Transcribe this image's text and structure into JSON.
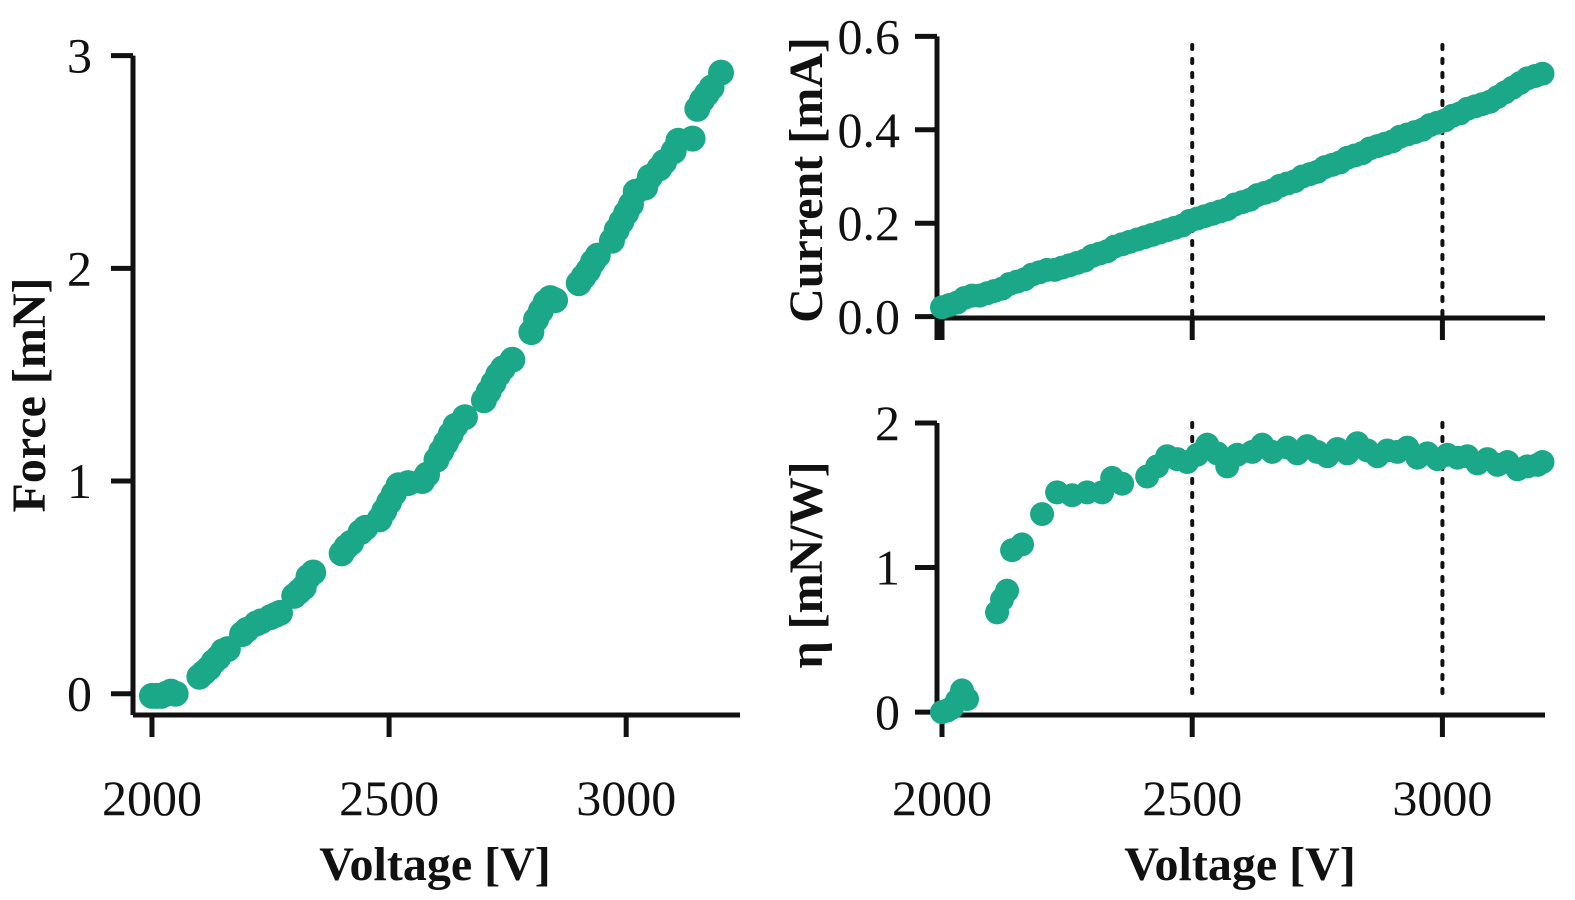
{
  "colors": {
    "marker": "#1aa888",
    "axis": "#111111"
  },
  "chart_data": [
    {
      "id": "force",
      "type": "scatter",
      "title": "",
      "xlabel": "Voltage [V]",
      "ylabel": "Force [mN]",
      "xlim": [
        1960,
        3240
      ],
      "ylim": [
        -0.1,
        3.05
      ],
      "xticks": [
        2000,
        2500,
        3000
      ],
      "xtick_labels": [
        "2000",
        "2500",
        "3000"
      ],
      "yticks": [
        0,
        1,
        2,
        3
      ],
      "ytick_labels": [
        "0",
        "1",
        "2",
        "3"
      ],
      "x": [
        2000,
        2010,
        2020,
        2030,
        2040,
        2050,
        2100,
        2110,
        2120,
        2130,
        2140,
        2150,
        2160,
        2190,
        2200,
        2220,
        2230,
        2250,
        2260,
        2270,
        2300,
        2310,
        2320,
        2330,
        2340,
        2400,
        2410,
        2420,
        2440,
        2450,
        2480,
        2490,
        2500,
        2510,
        2520,
        2540,
        2570,
        2580,
        2600,
        2610,
        2620,
        2630,
        2640,
        2660,
        2700,
        2710,
        2720,
        2730,
        2740,
        2760,
        2800,
        2810,
        2820,
        2830,
        2840,
        2850,
        2900,
        2910,
        2920,
        2930,
        2940,
        2970,
        2980,
        2990,
        3000,
        3010,
        3020,
        3040,
        3050,
        3070,
        3080,
        3100,
        3110,
        3140,
        3150,
        3160,
        3170,
        3180,
        3200
      ],
      "y": [
        -0.01,
        -0.01,
        -0.01,
        0.0,
        0.01,
        0.0,
        0.08,
        0.1,
        0.12,
        0.15,
        0.17,
        0.2,
        0.21,
        0.28,
        0.3,
        0.33,
        0.34,
        0.36,
        0.37,
        0.38,
        0.46,
        0.48,
        0.5,
        0.55,
        0.57,
        0.66,
        0.69,
        0.71,
        0.76,
        0.78,
        0.82,
        0.86,
        0.9,
        0.94,
        0.98,
        0.99,
        1.0,
        1.03,
        1.1,
        1.14,
        1.18,
        1.22,
        1.26,
        1.3,
        1.38,
        1.42,
        1.46,
        1.5,
        1.53,
        1.57,
        1.7,
        1.76,
        1.8,
        1.84,
        1.86,
        1.85,
        1.93,
        1.96,
        1.99,
        2.03,
        2.06,
        2.13,
        2.18,
        2.22,
        2.26,
        2.3,
        2.36,
        2.38,
        2.43,
        2.47,
        2.5,
        2.55,
        2.6,
        2.61,
        2.75,
        2.79,
        2.82,
        2.85,
        2.92
      ],
      "grid": false,
      "legend": "none"
    },
    {
      "id": "current",
      "type": "scatter",
      "title": "",
      "xlabel": "",
      "ylabel": "Current [mA]",
      "xlim": [
        1990,
        3205
      ],
      "ylim": [
        -0.05,
        0.62
      ],
      "xticks": [
        2000,
        2500,
        3000
      ],
      "xtick_labels": [
        "",
        "",
        ""
      ],
      "yticks": [
        0.0,
        0.2,
        0.4,
        0.6
      ],
      "ytick_labels": [
        "0.0",
        "0.2",
        "0.4",
        "0.6"
      ],
      "reference_lines_x": [
        2500,
        3000
      ],
      "x": [
        2000,
        2015,
        2030,
        2045,
        2060,
        2075,
        2090,
        2105,
        2120,
        2135,
        2150,
        2165,
        2180,
        2195,
        2210,
        2225,
        2240,
        2255,
        2270,
        2285,
        2300,
        2315,
        2330,
        2345,
        2360,
        2375,
        2390,
        2405,
        2420,
        2435,
        2450,
        2465,
        2480,
        2495,
        2510,
        2525,
        2540,
        2555,
        2570,
        2585,
        2600,
        2615,
        2630,
        2645,
        2660,
        2675,
        2690,
        2705,
        2720,
        2735,
        2750,
        2765,
        2780,
        2795,
        2810,
        2825,
        2840,
        2855,
        2870,
        2885,
        2900,
        2915,
        2930,
        2945,
        2960,
        2975,
        2990,
        3005,
        3020,
        3035,
        3050,
        3065,
        3080,
        3095,
        3110,
        3125,
        3140,
        3155,
        3170,
        3185,
        3200
      ],
      "y": [
        0.02,
        0.025,
        0.03,
        0.04,
        0.045,
        0.045,
        0.05,
        0.055,
        0.06,
        0.07,
        0.075,
        0.08,
        0.09,
        0.095,
        0.1,
        0.1,
        0.105,
        0.11,
        0.115,
        0.12,
        0.13,
        0.135,
        0.14,
        0.15,
        0.155,
        0.16,
        0.165,
        0.17,
        0.175,
        0.18,
        0.185,
        0.19,
        0.195,
        0.205,
        0.21,
        0.215,
        0.22,
        0.225,
        0.23,
        0.24,
        0.245,
        0.25,
        0.26,
        0.265,
        0.27,
        0.28,
        0.285,
        0.29,
        0.3,
        0.305,
        0.31,
        0.32,
        0.325,
        0.33,
        0.34,
        0.345,
        0.35,
        0.36,
        0.365,
        0.37,
        0.375,
        0.385,
        0.39,
        0.395,
        0.4,
        0.41,
        0.415,
        0.42,
        0.43,
        0.435,
        0.445,
        0.45,
        0.455,
        0.46,
        0.47,
        0.48,
        0.49,
        0.5,
        0.51,
        0.515,
        0.52
      ],
      "grid": false,
      "legend": "none"
    },
    {
      "id": "efficiency",
      "type": "scatter",
      "title": "",
      "xlabel": "Voltage [V]",
      "ylabel": "η [mN/W]",
      "xlim": [
        1990,
        3205
      ],
      "ylim": [
        -0.02,
        2.0
      ],
      "xticks": [
        2000,
        2500,
        3000
      ],
      "xtick_labels": [
        "2000",
        "2500",
        "3000"
      ],
      "yticks": [
        0,
        1,
        2
      ],
      "ytick_labels": [
        "0",
        "1",
        "2"
      ],
      "reference_lines_x": [
        2500,
        3000
      ],
      "x": [
        2000,
        2010,
        2020,
        2030,
        2040,
        2050,
        2110,
        2120,
        2130,
        2140,
        2160,
        2200,
        2230,
        2260,
        2290,
        2320,
        2340,
        2360,
        2410,
        2430,
        2450,
        2470,
        2490,
        2510,
        2530,
        2550,
        2570,
        2590,
        2620,
        2640,
        2660,
        2690,
        2710,
        2730,
        2750,
        2770,
        2790,
        2810,
        2830,
        2850,
        2870,
        2890,
        2910,
        2930,
        2950,
        2970,
        2990,
        3010,
        3030,
        3050,
        3070,
        3090,
        3110,
        3130,
        3150,
        3170,
        3190,
        3200
      ],
      "y": [
        0.0,
        0.01,
        0.03,
        0.08,
        0.15,
        0.09,
        0.69,
        0.78,
        0.84,
        1.12,
        1.16,
        1.37,
        1.52,
        1.5,
        1.52,
        1.52,
        1.62,
        1.58,
        1.63,
        1.7,
        1.77,
        1.75,
        1.73,
        1.78,
        1.85,
        1.79,
        1.7,
        1.78,
        1.8,
        1.85,
        1.8,
        1.83,
        1.79,
        1.84,
        1.8,
        1.77,
        1.82,
        1.79,
        1.86,
        1.81,
        1.77,
        1.81,
        1.8,
        1.83,
        1.76,
        1.79,
        1.75,
        1.78,
        1.76,
        1.77,
        1.72,
        1.75,
        1.71,
        1.73,
        1.68,
        1.7,
        1.71,
        1.73
      ],
      "grid": false,
      "legend": "none"
    }
  ]
}
